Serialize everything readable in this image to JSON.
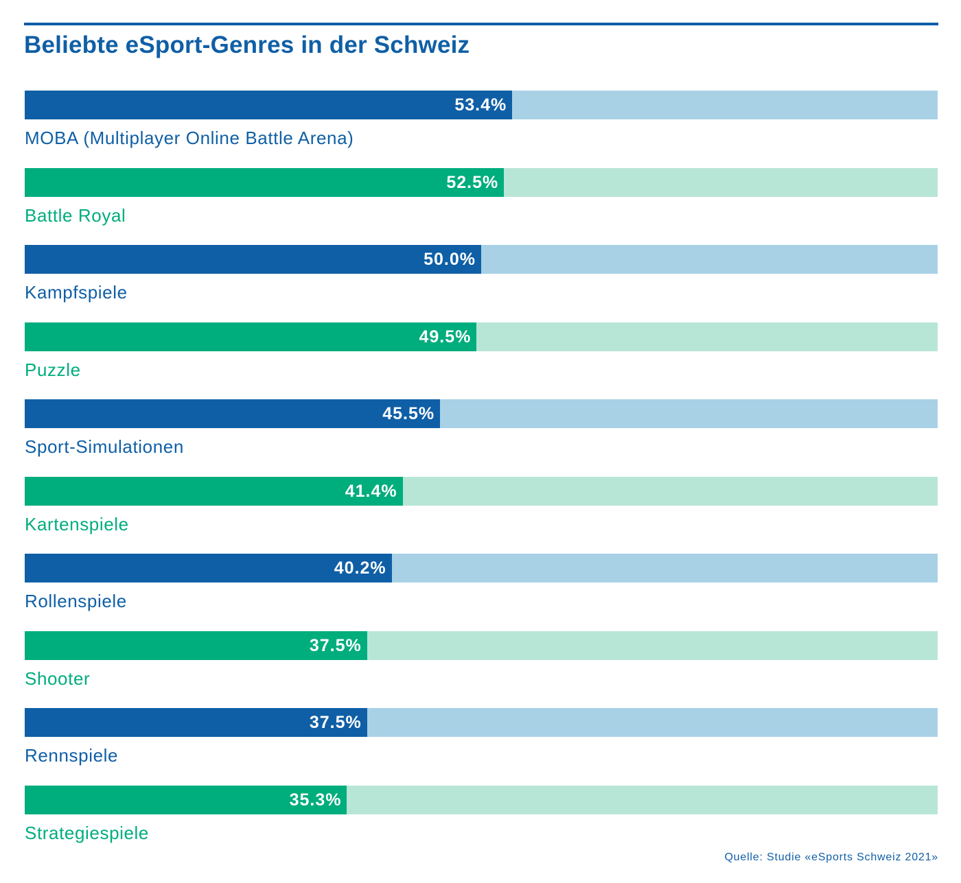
{
  "chart_data": {
    "type": "bar",
    "orientation": "horizontal",
    "title": "Beliebte eSport-Genres in der Schweiz",
    "xlim": [
      0,
      100
    ],
    "categories": [
      "MOBA (Multiplayer Online Battle Arena)",
      "Battle Royal",
      "Kampfspiele",
      "Puzzle",
      "Sport-Simulationen",
      "Kartenspiele",
      "Rollenspiele",
      "Shooter",
      "Rennspiele",
      "Strategiespiele"
    ],
    "values": [
      53.4,
      52.5,
      50.0,
      49.5,
      45.5,
      41.4,
      40.2,
      37.5,
      37.5,
      35.3
    ],
    "value_labels": [
      "53.4%",
      "52.5%",
      "50.0%",
      "49.5%",
      "45.5%",
      "41.4%",
      "40.2%",
      "37.5%",
      "37.5%",
      "35.3%"
    ],
    "grid": false,
    "legend": "none",
    "source": "Quelle: Studie «eSports Schweiz 2021»"
  },
  "colors": {
    "title": "#0f5fa6",
    "blue_fill": "#0f5fa6",
    "blue_track": "#a8d1e6",
    "green_fill": "#00ad7d",
    "green_track": "#b8e6d6"
  }
}
